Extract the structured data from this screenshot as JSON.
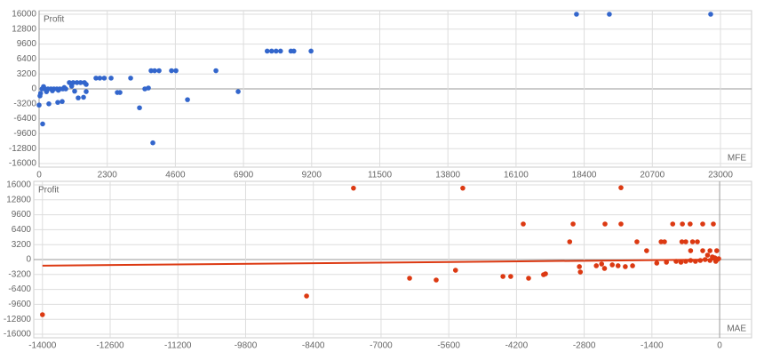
{
  "chart_data": [
    {
      "type": "scatter",
      "y_label": "Profit",
      "x_label": "MFE",
      "color": "#3366cc",
      "grid": true,
      "xlim": [
        0,
        24050
      ],
      "ylim": [
        -16000,
        16000
      ],
      "xticks": [
        0,
        2300,
        4600,
        6900,
        9200,
        11500,
        13800,
        16100,
        18400,
        20700,
        23000
      ],
      "yticks": [
        16000,
        12800,
        9600,
        6400,
        3200,
        0,
        -3200,
        -6400,
        -9600,
        -12800,
        -16000
      ],
      "x": [
        18140,
        19250,
        22670,
        7700,
        7850,
        8000,
        8150,
        8500,
        8600,
        9180,
        5970,
        3780,
        3900,
        4050,
        4470,
        4620,
        6720,
        5010,
        3840,
        3390,
        3690,
        3570,
        3090,
        2640,
        2730,
        1920,
        2050,
        2200,
        2430,
        1590,
        1590,
        1020,
        1150,
        1280,
        1400,
        1530,
        120,
        0,
        330,
        630,
        780,
        1320,
        1500,
        100,
        200,
        300,
        400,
        500,
        600,
        700,
        800,
        900,
        50,
        250,
        450,
        650,
        850,
        1100,
        1200,
        30,
        150
      ],
      "values": [
        16000,
        16000,
        16000,
        8100,
        8100,
        8100,
        8100,
        8100,
        8100,
        8100,
        3900,
        3900,
        3900,
        3900,
        3900,
        3900,
        -580,
        -2310,
        -11560,
        -4050,
        190,
        0,
        2310,
        -770,
        -770,
        2310,
        2310,
        2310,
        2310,
        960,
        -580,
        1350,
        1350,
        1350,
        1350,
        1350,
        -7510,
        -3470,
        -3200,
        -2890,
        -2700,
        -1930,
        -1800,
        0,
        0,
        0,
        0,
        0,
        0,
        0,
        0,
        0,
        -960,
        -600,
        -400,
        -300,
        300,
        600,
        -500,
        -1500,
        500
      ]
    },
    {
      "type": "scatter",
      "y_label": "Profit",
      "x_label": "MAE",
      "color": "#dc3912",
      "grid": true,
      "xlim": [
        -14180,
        660
      ],
      "ylim": [
        -16000,
        16000
      ],
      "xticks": [
        -14000,
        -12600,
        -11200,
        -9800,
        -8400,
        -7000,
        -5600,
        -4200,
        -2800,
        -1400,
        0
      ],
      "yticks": [
        16000,
        12800,
        9600,
        6400,
        3200,
        0,
        -3200,
        -6400,
        -9600,
        -12800,
        -16000
      ],
      "x": [
        -14000,
        -8540,
        -7570,
        -5310,
        -2040,
        -6410,
        -5860,
        -5460,
        -4480,
        -4320,
        -3950,
        -3640,
        -3600,
        -4060,
        -3030,
        -2370,
        -2040,
        -3100,
        -2900,
        -2880,
        -2550,
        -2440,
        -2380,
        -2220,
        -2100,
        -1950,
        -1800,
        -1710,
        -1510,
        -970,
        -770,
        -610,
        -350,
        -130,
        -1210,
        -1140,
        -780,
        -700,
        -560,
        -460,
        -600,
        -350,
        -200,
        -60,
        -1300,
        -1100,
        -900,
        -800,
        -700,
        -600,
        -500,
        -400,
        -300,
        -200,
        -100,
        -50,
        -20,
        -250,
        -150,
        -80
      ],
      "values": [
        -11810,
        -7810,
        15300,
        15300,
        15400,
        -4000,
        -4380,
        -2290,
        -3620,
        -3620,
        -4000,
        -3240,
        -3050,
        7620,
        7620,
        7620,
        7620,
        3810,
        -1520,
        -2670,
        -1330,
        -960,
        -1900,
        -1140,
        -1330,
        -1520,
        -1330,
        3810,
        1900,
        7620,
        7620,
        7620,
        7620,
        7620,
        3810,
        3810,
        3810,
        3810,
        3810,
        3810,
        1900,
        1900,
        1900,
        1900,
        -760,
        -570,
        -380,
        -570,
        -380,
        -190,
        -380,
        -190,
        0,
        -190,
        380,
        0,
        190,
        950,
        570,
        -380
      ],
      "trendline": {
        "x": [
          -14000,
          0
        ],
        "values": [
          -1300,
          0
        ]
      }
    }
  ]
}
